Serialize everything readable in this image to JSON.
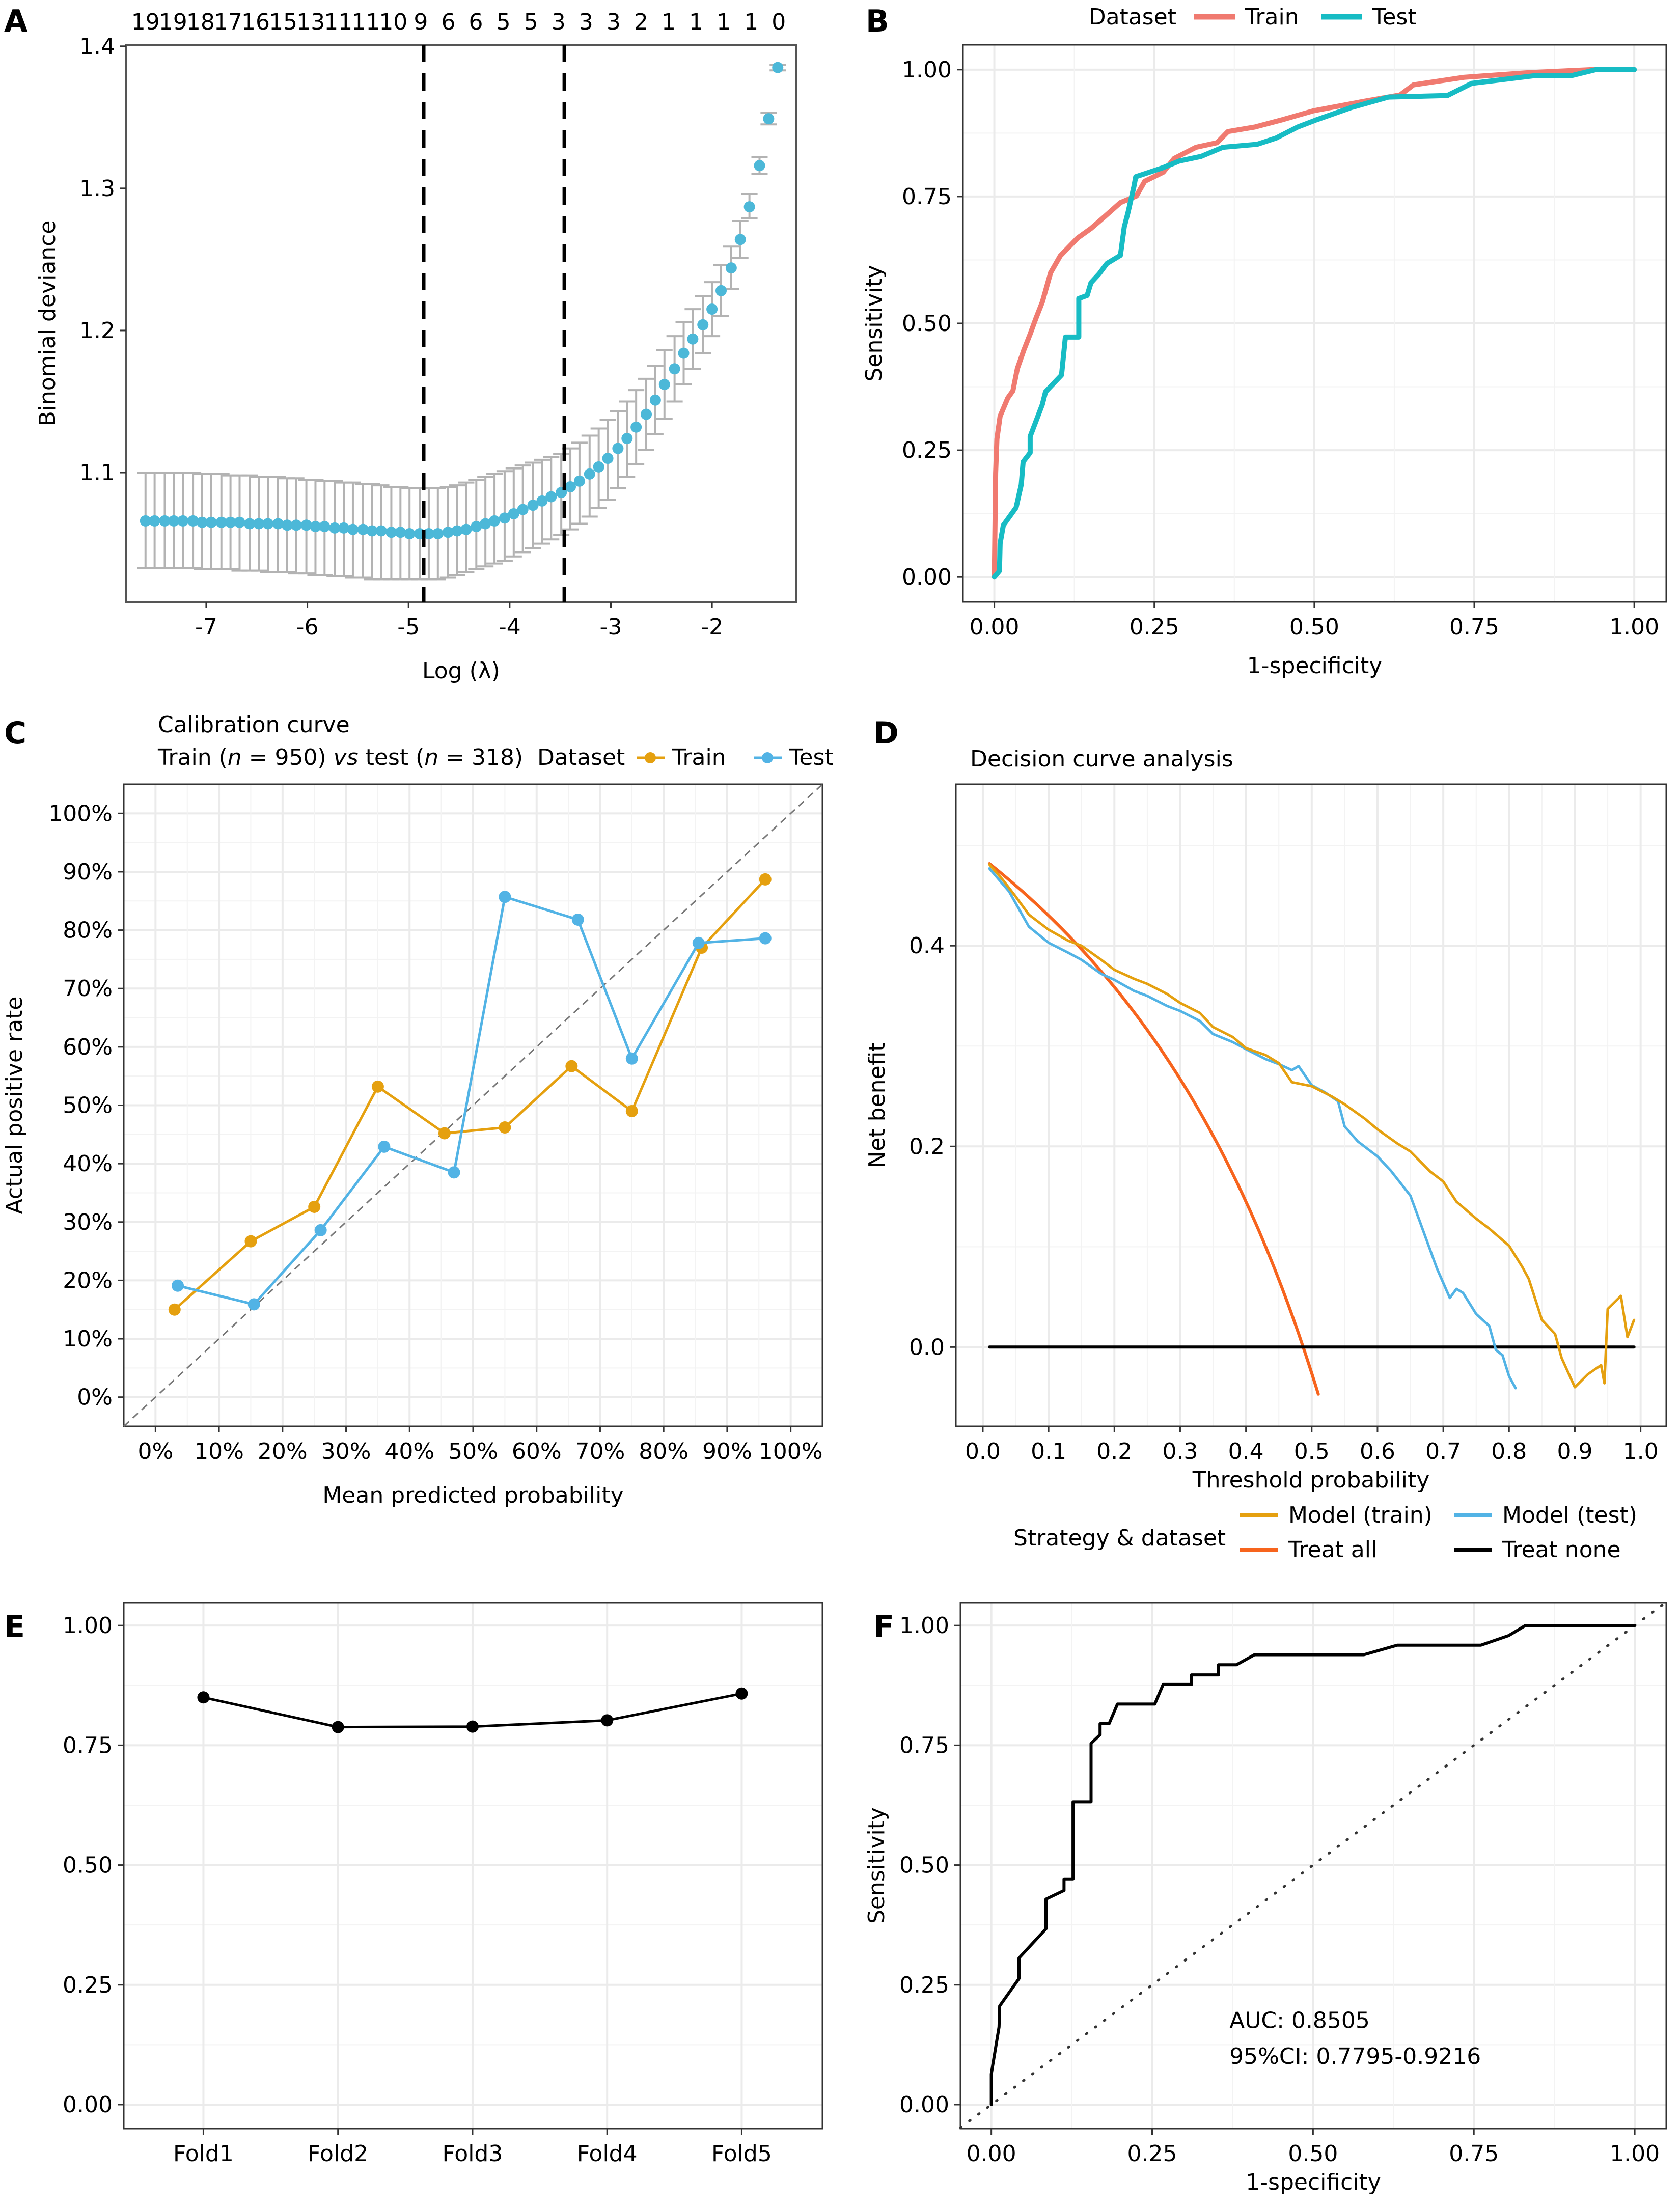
{
  "figure": {
    "panel_labels": [
      "A",
      "B",
      "C",
      "D",
      "E",
      "F"
    ]
  },
  "chart_data": [
    {
      "id": "A",
      "type": "scatter",
      "title": "",
      "xlabel": "Log (λ)",
      "ylabel": "Binomial deviance",
      "xlim": [
        -7.79,
        -1.17
      ],
      "ylim": [
        1.009,
        1.401
      ],
      "xticks": [
        -7,
        -6,
        -5,
        -4,
        -3,
        -2
      ],
      "yticks": [
        1.1,
        1.2,
        1.3,
        1.4
      ],
      "top_labels": [
        "19",
        "19",
        "18",
        "17",
        "16",
        "15",
        "13",
        "11",
        "11",
        "10",
        "9",
        "6",
        "6",
        "5",
        "5",
        "3",
        "3",
        "3",
        "2",
        "1",
        "1",
        "1",
        "1",
        "0"
      ],
      "vlines": [
        -4.85,
        -3.46
      ],
      "point_color": "#4cb8d8",
      "errorbar_color": "#b3b3b3",
      "series": {
        "x": [
          -7.6,
          -7.51,
          -7.41,
          -7.32,
          -7.23,
          -7.13,
          -7.04,
          -6.95,
          -6.85,
          -6.76,
          -6.67,
          -6.57,
          -6.48,
          -6.39,
          -6.29,
          -6.2,
          -6.11,
          -6.01,
          -5.92,
          -5.83,
          -5.73,
          -5.64,
          -5.55,
          -5.45,
          -5.36,
          -5.27,
          -5.17,
          -5.08,
          -4.99,
          -4.89,
          -4.8,
          -4.71,
          -4.61,
          -4.52,
          -4.43,
          -4.33,
          -4.24,
          -4.15,
          -4.05,
          -3.96,
          -3.87,
          -3.77,
          -3.68,
          -3.59,
          -3.49,
          -3.4,
          -3.31,
          -3.21,
          -3.12,
          -3.03,
          -2.93,
          -2.84,
          -2.75,
          -2.65,
          -2.56,
          -2.47,
          -2.37,
          -2.28,
          -2.19,
          -2.09,
          -2.0,
          -1.91,
          -1.81,
          -1.72,
          -1.63,
          -1.53,
          -1.44
        ],
        "mean": [
          1.066,
          1.066,
          1.066,
          1.066,
          1.066,
          1.066,
          1.065,
          1.065,
          1.065,
          1.065,
          1.065,
          1.064,
          1.064,
          1.064,
          1.064,
          1.063,
          1.063,
          1.063,
          1.062,
          1.062,
          1.061,
          1.061,
          1.06,
          1.06,
          1.059,
          1.059,
          1.058,
          1.058,
          1.057,
          1.057,
          1.057,
          1.057,
          1.058,
          1.059,
          1.06,
          1.062,
          1.064,
          1.066,
          1.068,
          1.071,
          1.074,
          1.077,
          1.08,
          1.083,
          1.086,
          1.09,
          1.094,
          1.099,
          1.104,
          1.11,
          1.117,
          1.124,
          1.132,
          1.141,
          1.151,
          1.162,
          1.173,
          1.184,
          1.194,
          1.204,
          1.215,
          1.228,
          1.244,
          1.264,
          1.287,
          1.316,
          1.349
        ],
        "lower": [
          1.033,
          1.033,
          1.033,
          1.033,
          1.033,
          1.033,
          1.032,
          1.032,
          1.032,
          1.032,
          1.031,
          1.031,
          1.031,
          1.03,
          1.03,
          1.03,
          1.029,
          1.029,
          1.028,
          1.028,
          1.027,
          1.027,
          1.026,
          1.026,
          1.025,
          1.025,
          1.025,
          1.025,
          1.025,
          1.025,
          1.025,
          1.025,
          1.026,
          1.028,
          1.03,
          1.032,
          1.034,
          1.036,
          1.038,
          1.041,
          1.044,
          1.047,
          1.05,
          1.053,
          1.056,
          1.06,
          1.064,
          1.069,
          1.075,
          1.081,
          1.089,
          1.097,
          1.106,
          1.116,
          1.127,
          1.138,
          1.15,
          1.162,
          1.173,
          1.184,
          1.196,
          1.21,
          1.229,
          1.251,
          1.279,
          1.31,
          1.345
        ],
        "upper": [
          1.1,
          1.1,
          1.1,
          1.1,
          1.1,
          1.1,
          1.099,
          1.099,
          1.099,
          1.098,
          1.098,
          1.098,
          1.097,
          1.097,
          1.097,
          1.096,
          1.096,
          1.095,
          1.095,
          1.094,
          1.094,
          1.093,
          1.093,
          1.092,
          1.092,
          1.091,
          1.09,
          1.09,
          1.089,
          1.089,
          1.089,
          1.089,
          1.09,
          1.091,
          1.093,
          1.095,
          1.097,
          1.099,
          1.101,
          1.103,
          1.105,
          1.107,
          1.109,
          1.111,
          1.113,
          1.117,
          1.121,
          1.126,
          1.131,
          1.137,
          1.143,
          1.15,
          1.158,
          1.166,
          1.175,
          1.186,
          1.196,
          1.206,
          1.215,
          1.224,
          1.234,
          1.246,
          1.259,
          1.277,
          1.296,
          1.322,
          1.353
        ]
      },
      "last_point": {
        "x": -1.35,
        "mean": 1.385,
        "lower": 1.383,
        "upper": 1.387
      }
    },
    {
      "id": "B",
      "type": "line",
      "title": "",
      "xlabel": "1-specificity",
      "ylabel": "Sensitivity",
      "xlim": [
        -0.049,
        1.05
      ],
      "ylim": [
        -0.049,
        1.049
      ],
      "xticks": [
        0,
        0.25,
        0.5,
        0.75,
        1.0
      ],
      "yticks": [
        0,
        0.25,
        0.5,
        0.75,
        1.0
      ],
      "tick_labels": [
        "0.00",
        "0.25",
        "0.50",
        "0.75",
        "1.00"
      ],
      "legend": {
        "title": "Dataset",
        "position": "top"
      },
      "series": [
        {
          "name": "Train",
          "color": "#f07a70",
          "x": [
            0,
            0.002,
            0.004,
            0.009,
            0.021,
            0.029,
            0.036,
            0.046,
            0.056,
            0.065,
            0.075,
            0.088,
            0.103,
            0.13,
            0.151,
            0.172,
            0.197,
            0.222,
            0.235,
            0.264,
            0.281,
            0.315,
            0.348,
            0.365,
            0.407,
            0.449,
            0.499,
            0.575,
            0.634,
            0.655,
            0.734,
            0.834,
            0.935,
            1
          ],
          "y": [
            0,
            0.205,
            0.272,
            0.317,
            0.353,
            0.367,
            0.411,
            0.447,
            0.479,
            0.51,
            0.542,
            0.6,
            0.633,
            0.668,
            0.687,
            0.71,
            0.738,
            0.751,
            0.78,
            0.798,
            0.825,
            0.847,
            0.856,
            0.878,
            0.887,
            0.901,
            0.919,
            0.937,
            0.95,
            0.97,
            0.985,
            0.994,
            1,
            1
          ]
        },
        {
          "name": "Test",
          "color": "#17bcc4",
          "x": [
            0,
            0.008,
            0.009,
            0.014,
            0.034,
            0.042,
            0.045,
            0.056,
            0.056,
            0.075,
            0.08,
            0.105,
            0.111,
            0.132,
            0.132,
            0.145,
            0.151,
            0.164,
            0.176,
            0.197,
            0.203,
            0.209,
            0.218,
            0.221,
            0.264,
            0.289,
            0.323,
            0.357,
            0.411,
            0.44,
            0.474,
            0.503,
            0.557,
            0.616,
            0.708,
            0.746,
            0.843,
            0.901,
            0.94,
            1
          ],
          "y": [
            0,
            0.012,
            0.066,
            0.102,
            0.137,
            0.182,
            0.227,
            0.245,
            0.277,
            0.34,
            0.365,
            0.398,
            0.473,
            0.473,
            0.549,
            0.555,
            0.58,
            0.598,
            0.618,
            0.634,
            0.69,
            0.719,
            0.769,
            0.789,
            0.807,
            0.82,
            0.829,
            0.847,
            0.853,
            0.865,
            0.887,
            0.901,
            0.925,
            0.946,
            0.949,
            0.973,
            0.988,
            0.988,
            1,
            1
          ]
        }
      ]
    },
    {
      "id": "C",
      "type": "line",
      "title": "Calibration curve",
      "subtitle_parts": [
        "Train (",
        "n",
        " = 950) ",
        "vs",
        " test (",
        "n",
        " = 318)"
      ],
      "xlabel": "Mean predicted probability",
      "ylabel": "Actual positive rate",
      "xlim": [
        -5,
        105
      ],
      "ylim": [
        -5,
        105
      ],
      "xticks": [
        0,
        10,
        20,
        30,
        40,
        50,
        60,
        70,
        80,
        90,
        100
      ],
      "yticks": [
        0,
        10,
        20,
        30,
        40,
        50,
        60,
        70,
        80,
        90,
        100
      ],
      "tick_suffix": "%",
      "reference_line": "y = x (dashed)",
      "legend": {
        "title": "Dataset",
        "position": "top-right"
      },
      "series": [
        {
          "name": "Train",
          "color": "#e5a00f",
          "x": [
            3,
            15,
            25,
            35,
            45.5,
            55,
            65.5,
            75,
            86,
            96
          ],
          "y": [
            15,
            26.7,
            32.6,
            53.2,
            45.2,
            46.2,
            56.7,
            49,
            77,
            88.7
          ]
        },
        {
          "name": "Test",
          "color": "#52b3e5",
          "x": [
            3.5,
            15.5,
            26,
            36,
            47,
            55,
            66.5,
            75,
            85.5,
            96
          ],
          "y": [
            19.1,
            15.9,
            28.6,
            42.9,
            38.5,
            85.7,
            81.8,
            58,
            77.8,
            78.6
          ]
        }
      ]
    },
    {
      "id": "D",
      "type": "line",
      "title": "Decision curve analysis",
      "xlabel": "Threshold probability",
      "ylabel": "Net benefit",
      "xlim": [
        -0.041,
        1.039
      ],
      "ylim": [
        -0.079,
        0.561
      ],
      "xticks": [
        0,
        0.1,
        0.2,
        0.3,
        0.4,
        0.5,
        0.6,
        0.7,
        0.8,
        0.9,
        1.0
      ],
      "xtick_labels": [
        "0.0",
        "0.1",
        "0.2",
        "0.3",
        "0.4",
        "0.5",
        "0.6",
        "0.7",
        "0.8",
        "0.9",
        "1.0"
      ],
      "yticks": [
        0,
        0.2,
        0.4
      ],
      "ytick_labels": [
        "0.0",
        "0.2",
        "0.4"
      ],
      "legend": {
        "title": "Strategy & dataset",
        "position": "bottom"
      },
      "series": [
        {
          "name": "Model (train)",
          "color": "#e5a00f",
          "x": [
            0.01,
            0.03,
            0.05,
            0.07,
            0.1,
            0.13,
            0.15,
            0.18,
            0.2,
            0.23,
            0.25,
            0.28,
            0.3,
            0.33,
            0.35,
            0.38,
            0.4,
            0.43,
            0.45,
            0.47,
            0.5,
            0.53,
            0.55,
            0.58,
            0.6,
            0.63,
            0.65,
            0.68,
            0.7,
            0.72,
            0.75,
            0.77,
            0.8,
            0.82,
            0.83,
            0.85,
            0.87,
            0.88,
            0.9,
            0.92,
            0.94,
            0.945,
            0.95,
            0.97,
            0.98,
            0.99
          ],
          "y": [
            0.481,
            0.466,
            0.449,
            0.431,
            0.416,
            0.405,
            0.4,
            0.386,
            0.376,
            0.367,
            0.362,
            0.352,
            0.343,
            0.333,
            0.319,
            0.309,
            0.298,
            0.291,
            0.283,
            0.264,
            0.26,
            0.25,
            0.242,
            0.228,
            0.217,
            0.203,
            0.195,
            0.175,
            0.165,
            0.145,
            0.128,
            0.118,
            0.101,
            0.08,
            0.068,
            0.027,
            0.013,
            -0.011,
            -0.04,
            -0.027,
            -0.018,
            -0.036,
            0.038,
            0.051,
            0.01,
            0.027
          ]
        },
        {
          "name": "Model (test)",
          "color": "#52b3e5",
          "x": [
            0.01,
            0.04,
            0.07,
            0.1,
            0.13,
            0.15,
            0.18,
            0.2,
            0.23,
            0.25,
            0.28,
            0.3,
            0.33,
            0.35,
            0.38,
            0.4,
            0.43,
            0.45,
            0.47,
            0.48,
            0.5,
            0.52,
            0.54,
            0.55,
            0.57,
            0.6,
            0.62,
            0.65,
            0.67,
            0.69,
            0.71,
            0.72,
            0.73,
            0.75,
            0.77,
            0.78,
            0.79,
            0.8,
            0.81
          ],
          "y": [
            0.477,
            0.454,
            0.419,
            0.403,
            0.393,
            0.386,
            0.372,
            0.366,
            0.355,
            0.35,
            0.34,
            0.335,
            0.325,
            0.312,
            0.304,
            0.297,
            0.287,
            0.282,
            0.276,
            0.28,
            0.261,
            0.254,
            0.245,
            0.22,
            0.205,
            0.19,
            0.176,
            0.151,
            0.115,
            0.079,
            0.049,
            0.058,
            0.054,
            0.033,
            0.021,
            -0.003,
            -0.008,
            -0.029,
            -0.041
          ]
        },
        {
          "name": "Treat all",
          "color": "#f7641d",
          "prevalence": 0.487,
          "x_range": [
            0.01,
            0.51
          ]
        },
        {
          "name": "Treat none",
          "color": "#000000",
          "x": [
            0.01,
            0.99
          ],
          "y": [
            0,
            0
          ]
        }
      ]
    },
    {
      "id": "E",
      "type": "line",
      "title": "",
      "xlabel": "",
      "ylabel": "",
      "categories": [
        "Fold1",
        "Fold2",
        "Fold3",
        "Fold4",
        "Fold5"
      ],
      "values": [
        0.85,
        0.788,
        0.789,
        0.802,
        0.858
      ],
      "ylim": [
        -0.05,
        1.048
      ],
      "yticks": [
        0,
        0.25,
        0.5,
        0.75,
        1.0
      ],
      "tick_labels": [
        "0.00",
        "0.25",
        "0.50",
        "0.75",
        "1.00"
      ],
      "color": "#000000"
    },
    {
      "id": "F",
      "type": "line",
      "title": "",
      "xlabel": "1-specificity",
      "ylabel": "Sensitivity",
      "xlim": [
        -0.048,
        1.049
      ],
      "ylim": [
        -0.05,
        1.048
      ],
      "xticks": [
        0,
        0.25,
        0.5,
        0.75,
        1.0
      ],
      "yticks": [
        0,
        0.25,
        0.5,
        0.75,
        1.0
      ],
      "tick_labels": [
        "0.00",
        "0.25",
        "0.50",
        "0.75",
        "1.00"
      ],
      "reference_line": "y = x (dotted)",
      "annotations": [
        "AUC: 0.8505",
        "95%CI: 0.7795-0.9216"
      ],
      "series": [
        {
          "name": "ROC",
          "color": "#000000",
          "x": [
            0,
            0,
            0.012,
            0.013,
            0.043,
            0.043,
            0.085,
            0.085,
            0.113,
            0.113,
            0.127,
            0.127,
            0.155,
            0.155,
            0.169,
            0.169,
            0.183,
            0.196,
            0.254,
            0.267,
            0.311,
            0.311,
            0.353,
            0.353,
            0.381,
            0.409,
            0.579,
            0.631,
            0.761,
            0.804,
            0.83,
            1
          ],
          "y": [
            0,
            0.064,
            0.162,
            0.206,
            0.263,
            0.306,
            0.367,
            0.429,
            0.447,
            0.471,
            0.471,
            0.632,
            0.632,
            0.754,
            0.772,
            0.795,
            0.795,
            0.836,
            0.836,
            0.877,
            0.877,
            0.897,
            0.897,
            0.918,
            0.918,
            0.939,
            0.939,
            0.959,
            0.959,
            0.979,
            1,
            1
          ]
        }
      ]
    }
  ]
}
